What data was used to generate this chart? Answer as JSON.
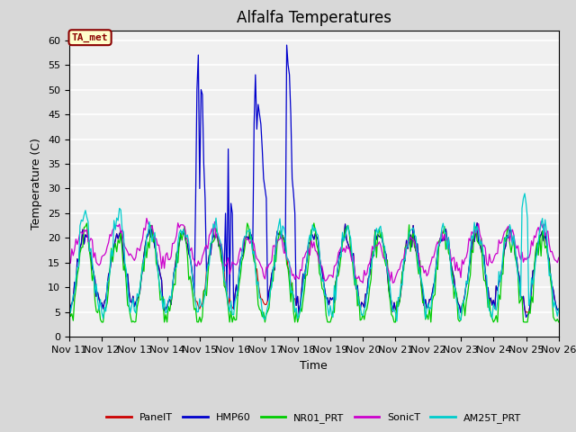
{
  "title": "Alfalfa Temperatures",
  "xlabel": "Time",
  "ylabel": "Temperature (C)",
  "ylim": [
    0,
    62
  ],
  "bg_color": "#d8d8d8",
  "plot_bg_color": "#f0f0f0",
  "annotation_text": "TA_met",
  "annotation_bg": "#ffffcc",
  "annotation_edge": "#8b0000",
  "series_colors": {
    "PanelT": "#cc0000",
    "HMP60": "#0000cc",
    "NR01_PRT": "#00cc00",
    "SonicT": "#cc00cc",
    "AM25T_PRT": "#00cccc"
  },
  "x_tick_labels": [
    "Nov 11",
    "Nov 12",
    "Nov 13",
    "Nov 14",
    "Nov 15",
    "Nov 16",
    "Nov 17",
    "Nov 18",
    "Nov 19",
    "Nov 20",
    "Nov 21",
    "Nov 22",
    "Nov 23",
    "Nov 24",
    "Nov 25",
    "Nov 26"
  ],
  "x_tick_positions": [
    0,
    24,
    48,
    72,
    96,
    120,
    144,
    168,
    192,
    216,
    240,
    264,
    288,
    312,
    336,
    360
  ],
  "y_ticks": [
    0,
    5,
    10,
    15,
    20,
    25,
    30,
    35,
    40,
    45,
    50,
    55,
    60
  ],
  "title_fontsize": 12,
  "label_fontsize": 9,
  "tick_fontsize": 8
}
